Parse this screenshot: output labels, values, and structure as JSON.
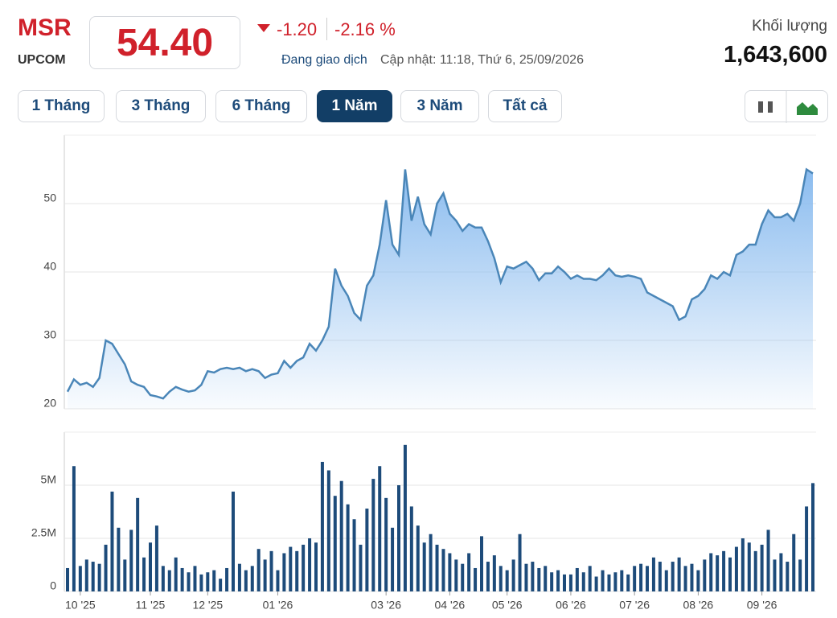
{
  "header": {
    "symbol": "MSR",
    "exchange": "UPCOM",
    "price": "54.40",
    "change": "-1.20",
    "change_pct": "-2.16 %",
    "status": "Đang giao dịch",
    "updated": "Cập nhật: 11:18, Thứ 6, 25/09/2026",
    "volume_label": "Khối lượng",
    "volume": "1,643,600"
  },
  "tabs": [
    "1 Tháng",
    "3 Tháng",
    "6 Tháng",
    "1 Năm",
    "3 Năm",
    "Tất cả"
  ],
  "active_tab": 3,
  "chart_data": [
    {
      "type": "line",
      "color": "#4a86b8",
      "grid": true,
      "ylim": [
        20,
        60
      ],
      "yticks": [
        20,
        30,
        40,
        50
      ],
      "categories": [
        null,
        null,
        null,
        null,
        null,
        null,
        null,
        null,
        null,
        null,
        null,
        null,
        null,
        null,
        null,
        null,
        null,
        null,
        null,
        null,
        null,
        null,
        null,
        null,
        null,
        null,
        null,
        null,
        null,
        null,
        null,
        null,
        null,
        null,
        null,
        null,
        null,
        null,
        null,
        null,
        null,
        null,
        null,
        null,
        null,
        null,
        null,
        null,
        null,
        null,
        null,
        null,
        null,
        null,
        null,
        null,
        null,
        null,
        null,
        null,
        null,
        null,
        null,
        null,
        null,
        null,
        null,
        null,
        null,
        null,
        null,
        null,
        null,
        null,
        null,
        null,
        null,
        null,
        null,
        null,
        null,
        null,
        null,
        null,
        null,
        null,
        null,
        null,
        null,
        null,
        null,
        null,
        null,
        null,
        null,
        null,
        null,
        null,
        null,
        null,
        null,
        null,
        null,
        null,
        null,
        null,
        null,
        null,
        null,
        null,
        null,
        null,
        null,
        null,
        null,
        null,
        null,
        null
      ],
      "values": [
        22.5,
        24.3,
        23.5,
        23.8,
        23.2,
        24.5,
        30,
        29.5,
        28,
        26.5,
        24,
        23.5,
        23.2,
        22,
        21.8,
        21.5,
        22.5,
        23.2,
        22.8,
        22.5,
        22.7,
        23.5,
        25.5,
        25.3,
        25.8,
        26,
        25.8,
        26,
        25.5,
        25.8,
        25.5,
        24.5,
        25,
        25.2,
        27,
        26,
        27,
        27.5,
        29.5,
        28.5,
        30,
        32,
        40.5,
        38,
        36.5,
        34,
        33,
        38,
        39.5,
        44,
        50.5,
        44,
        42.5,
        55,
        47.5,
        51,
        47,
        45.5,
        50,
        51.5,
        48.5,
        47.5,
        46,
        47,
        46.5,
        46.5,
        44.5,
        42,
        38.5,
        40.8,
        40.5,
        41,
        41.5,
        40.5,
        38.8,
        39.8,
        39.8,
        40.8,
        40,
        39,
        39.5,
        39,
        39,
        38.8,
        39.5,
        40.5,
        39.5,
        39.3,
        39.5,
        39.3,
        39,
        37,
        36.5,
        36,
        35.5,
        35,
        33,
        33.5,
        36,
        36.5,
        37.5,
        39.5,
        39,
        40,
        39.5,
        42.5,
        43,
        44,
        44,
        47,
        49,
        48,
        48,
        48.5,
        47.5,
        50,
        55,
        54.4
      ]
    },
    {
      "type": "bar",
      "color": "#1d4b7a",
      "grid": true,
      "ylim": [
        0,
        7500000
      ],
      "yticks": [
        0,
        {
          "value": 2500000,
          "label": "2.5M"
        },
        {
          "value": 5000000,
          "label": "5M"
        }
      ],
      "xticks": [
        {
          "value": 2,
          "label": "10 '25"
        },
        {
          "value": 13,
          "label": "11 '25"
        },
        {
          "value": 22,
          "label": "12 '25"
        },
        {
          "value": 33,
          "label": "01 '26"
        },
        {
          "value": 50,
          "label": "03 '26"
        },
        {
          "value": 60,
          "label": "04 '26"
        },
        {
          "value": 69,
          "label": "05 '26"
        },
        {
          "value": 79,
          "label": "06 '26"
        },
        {
          "value": 89,
          "label": "07 '26"
        },
        {
          "value": 99,
          "label": "08 '26"
        },
        {
          "value": 109,
          "label": "09 '26"
        }
      ],
      "categories": [
        null,
        null,
        null,
        null,
        null,
        null,
        null,
        null,
        null,
        null,
        null,
        null,
        null,
        null,
        null,
        null,
        null,
        null,
        null,
        null,
        null,
        null,
        null,
        null,
        null,
        null,
        null,
        null,
        null,
        null,
        null,
        null,
        null,
        null,
        null,
        null,
        null,
        null,
        null,
        null,
        null,
        null,
        null,
        null,
        null,
        null,
        null,
        null,
        null,
        null,
        null,
        null,
        null,
        null,
        null,
        null,
        null,
        null,
        null,
        null,
        null,
        null,
        null,
        null,
        null,
        null,
        null,
        null,
        null,
        null,
        null,
        null,
        null,
        null,
        null,
        null,
        null,
        null,
        null,
        null,
        null,
        null,
        null,
        null,
        null,
        null,
        null,
        null,
        null,
        null,
        null,
        null,
        null,
        null,
        null,
        null,
        null,
        null,
        null,
        null,
        null,
        null,
        null,
        null,
        null,
        null,
        null,
        null,
        null,
        null,
        null,
        null,
        null,
        null,
        null,
        null,
        null,
        null
      ],
      "values": [
        1100000,
        5900000,
        1200000,
        1500000,
        1400000,
        1300000,
        2200000,
        4700000,
        3000000,
        1500000,
        2900000,
        4400000,
        1600000,
        2300000,
        3100000,
        1200000,
        1000000,
        1600000,
        1100000,
        900000,
        1200000,
        800000,
        900000,
        1000000,
        600000,
        1100000,
        4700000,
        1300000,
        1000000,
        1200000,
        2000000,
        1500000,
        1900000,
        1000000,
        1800000,
        2100000,
        1900000,
        2200000,
        2500000,
        2300000,
        6100000,
        5700000,
        4500000,
        5200000,
        4100000,
        3400000,
        2200000,
        3900000,
        5300000,
        5900000,
        4400000,
        3000000,
        5000000,
        6900000,
        4000000,
        3100000,
        2300000,
        2700000,
        2200000,
        2000000,
        1800000,
        1500000,
        1300000,
        1800000,
        1100000,
        2600000,
        1400000,
        1700000,
        1200000,
        1000000,
        1500000,
        2700000,
        1300000,
        1400000,
        1100000,
        1200000,
        900000,
        1000000,
        800000,
        800000,
        1100000,
        900000,
        1200000,
        700000,
        1000000,
        800000,
        900000,
        1000000,
        800000,
        1200000,
        1300000,
        1200000,
        1600000,
        1400000,
        1000000,
        1400000,
        1600000,
        1200000,
        1300000,
        1000000,
        1500000,
        1800000,
        1700000,
        1900000,
        1600000,
        2100000,
        2500000,
        2300000,
        1900000,
        2200000,
        2900000,
        1500000,
        1800000,
        1400000,
        2700000,
        1500000,
        4000000,
        5100000
      ]
    }
  ]
}
